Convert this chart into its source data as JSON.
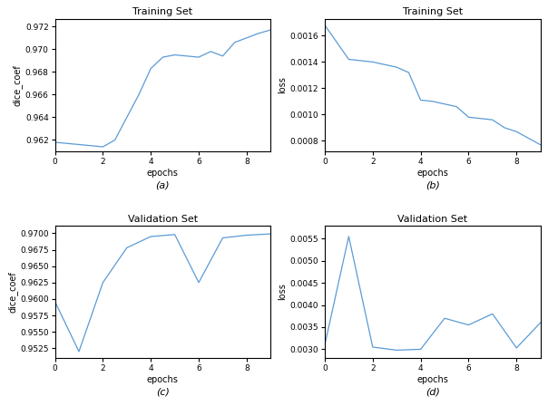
{
  "title_a": "Training Set",
  "title_b": "Training Set",
  "title_c": "Validation Set",
  "title_d": "Validation Set",
  "xlabel": "epochs",
  "ylabel_dice": "dice_coef",
  "ylabel_loss": "loss",
  "label_a": "(a)",
  "label_b": "(b)",
  "label_c": "(c)",
  "label_d": "(d)",
  "epochs_a": [
    0,
    0.5,
    1,
    1.5,
    2,
    2.5,
    3,
    3.5,
    4,
    4.5,
    5,
    5.5,
    6,
    6.5,
    7,
    7.5,
    8,
    8.5,
    9
  ],
  "dice_a": [
    0.9618,
    0.9617,
    0.9616,
    0.9615,
    0.9614,
    0.962,
    0.964,
    0.966,
    0.9683,
    0.9693,
    0.9695,
    0.9694,
    0.9693,
    0.9698,
    0.9694,
    0.9706,
    0.971,
    0.9714,
    0.9717
  ],
  "epochs_b": [
    0,
    0.5,
    1,
    1.5,
    2,
    2.5,
    3,
    3.5,
    4,
    4.5,
    5,
    5.5,
    6,
    6.5,
    7,
    7.5,
    8,
    8.5,
    9
  ],
  "loss_b": [
    0.00168,
    0.00155,
    0.00142,
    0.00141,
    0.0014,
    0.00138,
    0.00136,
    0.00132,
    0.00111,
    0.0011,
    0.00108,
    0.00106,
    0.00098,
    0.00097,
    0.00096,
    0.0009,
    0.00087,
    0.00082,
    0.00077
  ],
  "epochs_c": [
    0,
    1,
    2,
    3,
    4,
    5,
    6,
    7,
    8,
    9
  ],
  "dice_c": [
    0.9596,
    0.952,
    0.9625,
    0.9678,
    0.9695,
    0.9698,
    0.9625,
    0.9693,
    0.9697,
    0.9699
  ],
  "epochs_d": [
    0,
    1,
    2,
    3,
    4,
    5,
    6,
    7,
    8,
    9
  ],
  "loss_d": [
    0.0031,
    0.00555,
    0.00305,
    0.00298,
    0.003,
    0.0037,
    0.00355,
    0.0038,
    0.00303,
    0.0036
  ],
  "line_color": "#5b9bd5",
  "fig_bg": "#ffffff",
  "yticks_a": [
    0.962,
    0.964,
    0.966,
    0.968,
    0.97,
    0.972
  ],
  "ylim_a": [
    0.961,
    0.9727
  ],
  "yticks_b": [
    0.0008,
    0.001,
    0.0012,
    0.0014,
    0.0016
  ],
  "ylim_b": [
    0.00072,
    0.00173
  ],
  "yticks_c": [
    0.9525,
    0.955,
    0.9575,
    0.96,
    0.9625,
    0.965,
    0.9675,
    0.97
  ],
  "ylim_c": [
    0.951,
    0.9712
  ],
  "yticks_d": [
    0.003,
    0.0035,
    0.004,
    0.0045,
    0.005,
    0.0055
  ],
  "ylim_d": [
    0.0028,
    0.0058
  ],
  "xticks": [
    0,
    2,
    4,
    6,
    8
  ],
  "xlim": [
    0,
    9
  ]
}
